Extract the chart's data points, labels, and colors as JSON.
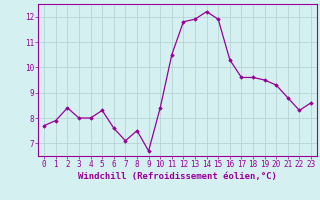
{
  "x": [
    0,
    1,
    2,
    3,
    4,
    5,
    6,
    7,
    8,
    9,
    10,
    11,
    12,
    13,
    14,
    15,
    16,
    17,
    18,
    19,
    20,
    21,
    22,
    23
  ],
  "y": [
    7.7,
    7.9,
    8.4,
    8.0,
    8.0,
    8.3,
    7.6,
    7.1,
    7.5,
    6.7,
    8.4,
    10.5,
    11.8,
    11.9,
    12.2,
    11.9,
    10.3,
    9.6,
    9.6,
    9.5,
    9.3,
    8.8,
    8.3,
    8.6
  ],
  "line_color": "#990099",
  "marker": "D",
  "marker_size": 1.8,
  "bg_color": "#d5f0f0",
  "grid_color": "#b0d0d0",
  "xlabel": "Windchill (Refroidissement éolien,°C)",
  "ylim": [
    6.5,
    12.5
  ],
  "xlim": [
    -0.5,
    23.5
  ],
  "yticks": [
    7,
    8,
    9,
    10,
    11,
    12
  ],
  "xticks": [
    0,
    1,
    2,
    3,
    4,
    5,
    6,
    7,
    8,
    9,
    10,
    11,
    12,
    13,
    14,
    15,
    16,
    17,
    18,
    19,
    20,
    21,
    22,
    23
  ],
  "tick_fontsize": 5.5,
  "xlabel_fontsize": 6.5,
  "spine_color": "#990099"
}
